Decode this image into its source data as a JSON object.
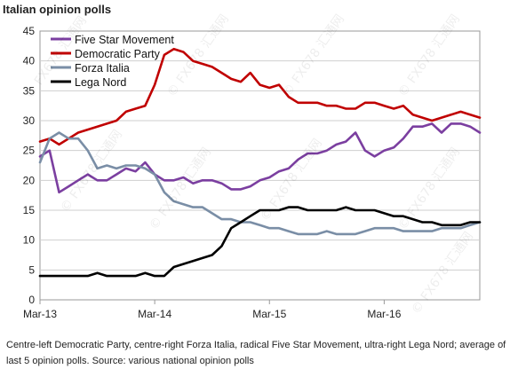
{
  "chart_data": {
    "type": "line",
    "title": "Italian opinion polls",
    "caption": "Centre-left Democratic Party, centre-right Forza Italia, radical Five Star Movement, ultra-right Lega Nord; average of last 5 opinion polls. Source: various national opinion polls",
    "xlabel": "",
    "ylabel": "",
    "ylim": [
      0,
      45
    ],
    "yticks": [
      0,
      5,
      10,
      15,
      20,
      25,
      30,
      35,
      40,
      45
    ],
    "xlim": [
      "2013-03",
      "2017-01"
    ],
    "xticks": [
      {
        "date": "2013-03",
        "label": "Mar-13"
      },
      {
        "date": "2014-03",
        "label": "Mar-14"
      },
      {
        "date": "2015-03",
        "label": "Mar-15"
      },
      {
        "date": "2016-03",
        "label": "Mar-16"
      }
    ],
    "x": [
      "2013-03",
      "2013-04",
      "2013-05",
      "2013-06",
      "2013-07",
      "2013-08",
      "2013-09",
      "2013-10",
      "2013-11",
      "2013-12",
      "2014-01",
      "2014-02",
      "2014-03",
      "2014-04",
      "2014-05",
      "2014-06",
      "2014-07",
      "2014-08",
      "2014-09",
      "2014-10",
      "2014-11",
      "2014-12",
      "2015-01",
      "2015-02",
      "2015-03",
      "2015-04",
      "2015-05",
      "2015-06",
      "2015-07",
      "2015-08",
      "2015-09",
      "2015-10",
      "2015-11",
      "2015-12",
      "2016-01",
      "2016-02",
      "2016-03",
      "2016-04",
      "2016-05",
      "2016-06",
      "2016-07",
      "2016-08",
      "2016-09",
      "2016-10",
      "2016-11",
      "2016-12",
      "2017-01"
    ],
    "series": [
      {
        "name": "Five Star Movement",
        "color": "#7b3fa0",
        "values": [
          24,
          25,
          18,
          19,
          20,
          21,
          20,
          20,
          21,
          22,
          21.5,
          23,
          21,
          20,
          20,
          20.5,
          19.5,
          20,
          20,
          19.5,
          18.5,
          18.5,
          19,
          20,
          20.5,
          21.5,
          22,
          23.5,
          24.5,
          24.5,
          25,
          26,
          26.5,
          28,
          25,
          24,
          25,
          25.5,
          27,
          29,
          29,
          29.5,
          28,
          29.5,
          29.5,
          29,
          28
        ]
      },
      {
        "name": "Democratic Party",
        "color": "#c00000",
        "values": [
          26.5,
          27,
          26,
          27,
          28,
          28.5,
          29,
          29.5,
          30,
          31.5,
          32,
          32.5,
          36,
          41,
          42,
          41.5,
          40,
          39.5,
          39,
          38,
          37,
          36.5,
          38,
          36,
          35.5,
          36,
          34,
          33,
          33,
          33,
          32.5,
          32.5,
          32,
          32,
          33,
          33,
          32.5,
          32,
          32.5,
          31,
          30.5,
          30,
          30.5,
          31,
          31.5,
          31,
          30.5
        ]
      },
      {
        "name": "Forza Italia",
        "color": "#7a8ea6",
        "values": [
          23,
          27,
          28,
          27,
          27,
          25,
          22,
          22.5,
          22,
          22.5,
          22.5,
          22,
          21,
          18,
          16.5,
          16,
          15.5,
          15.5,
          14.5,
          13.5,
          13.5,
          13,
          13,
          12.5,
          12,
          12,
          11.5,
          11,
          11,
          11,
          11.5,
          11,
          11,
          11,
          11.5,
          12,
          12,
          12,
          11.5,
          11.5,
          11.5,
          11.5,
          12,
          12,
          12,
          12.5,
          13
        ]
      },
      {
        "name": "Lega Nord",
        "color": "#000000",
        "values": [
          4,
          4,
          4,
          4,
          4,
          4,
          4.5,
          4,
          4,
          4,
          4,
          4.5,
          4,
          4,
          5.5,
          6,
          6.5,
          7,
          7.5,
          9,
          12,
          13,
          14,
          15,
          15,
          15,
          15.5,
          15.5,
          15,
          15,
          15,
          15,
          15.5,
          15,
          15,
          15,
          14.5,
          14,
          14,
          13.5,
          13,
          13,
          12.5,
          12.5,
          12.5,
          13,
          13
        ]
      }
    ],
    "legend_position": "top-left",
    "grid": "horizontal",
    "watermark": "FX678 汇通网"
  }
}
